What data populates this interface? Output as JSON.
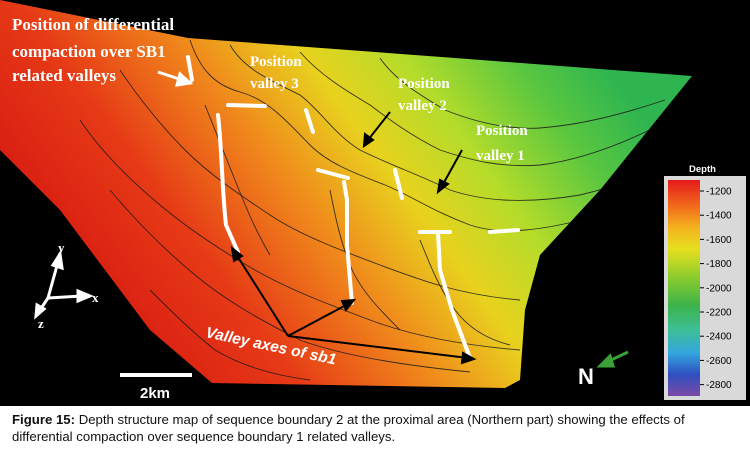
{
  "annotations": {
    "compaction_line1": "Position of differential",
    "compaction_line2": "compaction over SB1",
    "compaction_line3": "related valleys",
    "valley3_line1": "Position",
    "valley3_line2": "valley 3",
    "valley2_line1": "Position",
    "valley2_line2": "valley 2",
    "valley1_line1": "Position",
    "valley1_line2": "valley 1",
    "valley_axes": "Valley axes of sb1"
  },
  "axes": {
    "y": "y",
    "x": "x",
    "z": "z"
  },
  "scale_bar": {
    "label": "2km"
  },
  "north": {
    "label": "N",
    "arrow_color": "#3aa03a"
  },
  "legend": {
    "title": "Depth",
    "ticks": [
      "-1200",
      "-1400",
      "-1600",
      "-1800",
      "-2000",
      "-2200",
      "-2400",
      "-2600",
      "-2800"
    ]
  },
  "caption": {
    "label": "Figure 15:",
    "text": " Depth structure map of sequence boundary 2 at the proximal area (Northern part) showing the effects of differential compaction over sequence boundary 1 related valleys."
  }
}
